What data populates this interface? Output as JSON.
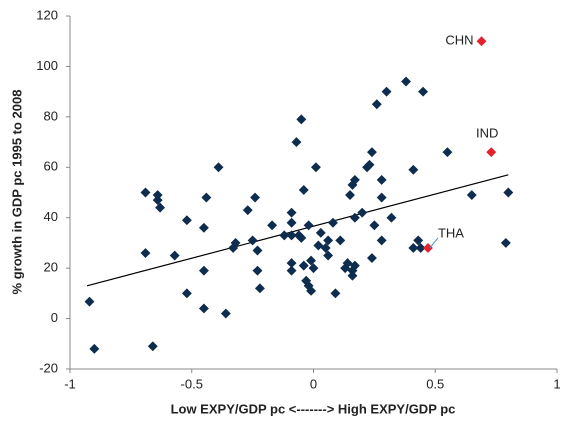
{
  "chart_data": {
    "type": "scatter",
    "x_label": "Low EXPY/GDP pc <-------> High EXPY/GDP pc",
    "y_label": "% growth in GDP pc 1995 to 2008",
    "xlim": [
      -1,
      1
    ],
    "xticks": [
      -1,
      -0.5,
      0,
      0.5,
      1
    ],
    "ylim": [
      -20,
      120
    ],
    "yticks": [
      -20,
      0,
      20,
      40,
      60,
      80,
      100,
      120
    ],
    "series": [
      {
        "color": "#0d2c4e",
        "x": [
          -0.92,
          -0.9,
          -0.69,
          -0.69,
          -0.64,
          -0.64,
          -0.63,
          -0.66,
          -0.57,
          -0.52,
          -0.52,
          -0.45,
          -0.45,
          -0.45,
          -0.44,
          -0.39,
          -0.36,
          -0.33,
          -0.32,
          -0.27,
          -0.25,
          -0.24,
          -0.23,
          -0.23,
          -0.22,
          -0.17,
          -0.12,
          -0.09,
          -0.09,
          -0.09,
          -0.09,
          -0.09,
          -0.07,
          -0.05,
          -0.06,
          -0.05,
          -0.04,
          -0.04,
          -0.03,
          -0.02,
          -0.01,
          -0.02,
          -0.01,
          0,
          0.01,
          0.02,
          0.03,
          0.05,
          0.06,
          0.06,
          0.08,
          0.09,
          0.11,
          0.13,
          0.14,
          0.16,
          0.15,
          0.16,
          0.17,
          0.17,
          0.16,
          0.17,
          0.2,
          0.22,
          0.23,
          0.24,
          0.25,
          0.24,
          0.26,
          0.28,
          0.28,
          0.28,
          0.3,
          0.32,
          0.38,
          0.41,
          0.41,
          0.43,
          0.45,
          0.44,
          0.55,
          0.65,
          0.79,
          0.8
        ],
        "values": [
          6.7,
          -12,
          50,
          26,
          49,
          47,
          44,
          -11,
          25,
          39,
          10,
          36,
          19,
          4,
          48,
          60,
          2,
          28,
          30,
          43,
          31,
          48,
          19,
          27,
          12,
          37,
          33,
          33,
          42,
          38,
          22,
          19,
          70,
          79,
          33,
          32,
          51,
          21,
          15,
          13,
          11,
          37,
          23,
          20,
          60,
          29,
          34,
          28,
          31,
          25,
          38,
          10,
          31,
          20,
          22,
          19,
          49,
          53,
          55,
          40,
          17,
          21,
          42,
          60,
          61,
          66,
          37,
          24,
          85,
          48,
          31,
          55,
          90,
          40,
          94,
          59,
          28,
          31,
          90,
          28,
          66,
          49,
          30,
          50
        ]
      },
      {
        "color": "#e3222b",
        "labels": [
          "CHN",
          "IND",
          "THA"
        ],
        "x": [
          0.69,
          0.73,
          0.47
        ],
        "values": [
          110,
          66,
          28
        ]
      }
    ],
    "trendline": {
      "color": "#000000",
      "x": [
        -0.93,
        0.8
      ],
      "values": [
        13,
        57
      ]
    }
  }
}
